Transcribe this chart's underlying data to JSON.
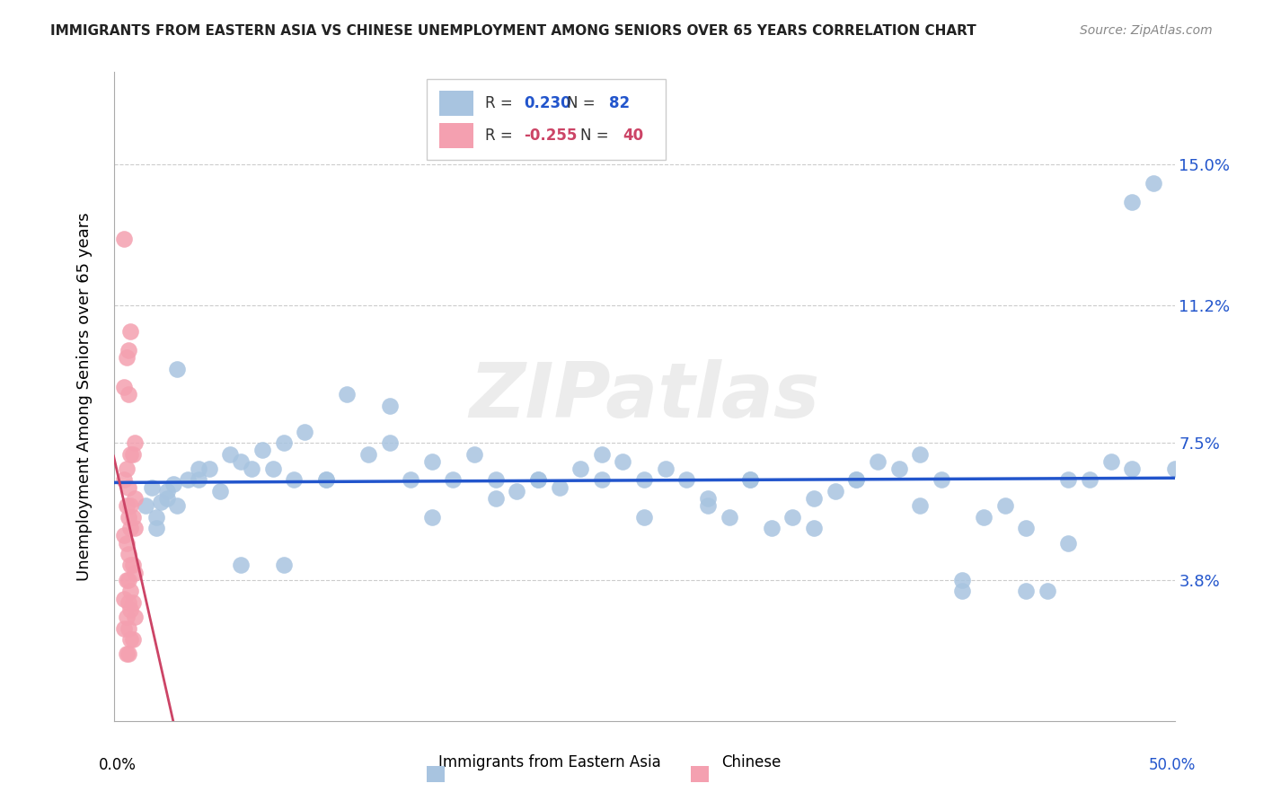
{
  "title": "IMMIGRANTS FROM EASTERN ASIA VS CHINESE UNEMPLOYMENT AMONG SENIORS OVER 65 YEARS CORRELATION CHART",
  "source": "Source: ZipAtlas.com",
  "ylabel": "Unemployment Among Seniors over 65 years",
  "xlim": [
    0.0,
    0.5
  ],
  "ylim": [
    0.0,
    0.175
  ],
  "yticks": [
    0.038,
    0.075,
    0.112,
    0.15
  ],
  "ytick_labels": [
    "3.8%",
    "7.5%",
    "11.2%",
    "15.0%"
  ],
  "xticks": [
    0.0,
    0.1,
    0.2,
    0.3,
    0.4,
    0.5
  ],
  "legend_blue_r": "0.230",
  "legend_blue_n": "82",
  "legend_pink_r": "-0.255",
  "legend_pink_n": "40",
  "blue_color": "#a8c4e0",
  "pink_color": "#f4a0b0",
  "blue_line_color": "#2255cc",
  "pink_line_color": "#cc4466",
  "watermark": "ZIPatlas",
  "blue_scatter_x": [
    0.02,
    0.025,
    0.03,
    0.025,
    0.02,
    0.015,
    0.018,
    0.022,
    0.028,
    0.035,
    0.04,
    0.045,
    0.05,
    0.055,
    0.06,
    0.065,
    0.07,
    0.075,
    0.08,
    0.085,
    0.09,
    0.1,
    0.11,
    0.12,
    0.13,
    0.14,
    0.15,
    0.16,
    0.17,
    0.18,
    0.19,
    0.2,
    0.21,
    0.22,
    0.23,
    0.24,
    0.25,
    0.26,
    0.27,
    0.28,
    0.29,
    0.3,
    0.31,
    0.32,
    0.33,
    0.34,
    0.35,
    0.36,
    0.37,
    0.38,
    0.39,
    0.4,
    0.41,
    0.42,
    0.43,
    0.44,
    0.45,
    0.46,
    0.47,
    0.48,
    0.49,
    0.5,
    0.03,
    0.04,
    0.06,
    0.08,
    0.1,
    0.13,
    0.15,
    0.18,
    0.2,
    0.23,
    0.25,
    0.28,
    0.3,
    0.33,
    0.35,
    0.38,
    0.4,
    0.43,
    0.45,
    0.48
  ],
  "blue_scatter_y": [
    0.055,
    0.06,
    0.058,
    0.062,
    0.052,
    0.058,
    0.063,
    0.059,
    0.064,
    0.065,
    0.065,
    0.068,
    0.062,
    0.072,
    0.07,
    0.068,
    0.073,
    0.068,
    0.075,
    0.065,
    0.078,
    0.065,
    0.088,
    0.072,
    0.085,
    0.065,
    0.07,
    0.065,
    0.072,
    0.065,
    0.062,
    0.065,
    0.063,
    0.068,
    0.065,
    0.07,
    0.065,
    0.068,
    0.065,
    0.06,
    0.055,
    0.065,
    0.052,
    0.055,
    0.052,
    0.062,
    0.065,
    0.07,
    0.068,
    0.072,
    0.065,
    0.035,
    0.055,
    0.058,
    0.052,
    0.035,
    0.048,
    0.065,
    0.07,
    0.14,
    0.145,
    0.068,
    0.095,
    0.068,
    0.042,
    0.042,
    0.065,
    0.075,
    0.055,
    0.06,
    0.065,
    0.072,
    0.055,
    0.058,
    0.065,
    0.06,
    0.065,
    0.058,
    0.038,
    0.035,
    0.065,
    0.068
  ],
  "pink_scatter_x": [
    0.005,
    0.007,
    0.008,
    0.006,
    0.005,
    0.007,
    0.01,
    0.009,
    0.008,
    0.006,
    0.005,
    0.007,
    0.01,
    0.008,
    0.006,
    0.009,
    0.007,
    0.01,
    0.008,
    0.005,
    0.006,
    0.007,
    0.008,
    0.009,
    0.01,
    0.006,
    0.007,
    0.008,
    0.005,
    0.009,
    0.007,
    0.008,
    0.006,
    0.01,
    0.005,
    0.007,
    0.009,
    0.008,
    0.006,
    0.007
  ],
  "pink_scatter_y": [
    0.13,
    0.1,
    0.105,
    0.098,
    0.09,
    0.088,
    0.075,
    0.072,
    0.072,
    0.068,
    0.065,
    0.063,
    0.06,
    0.058,
    0.058,
    0.055,
    0.055,
    0.052,
    0.052,
    0.05,
    0.048,
    0.045,
    0.042,
    0.042,
    0.04,
    0.038,
    0.038,
    0.035,
    0.033,
    0.032,
    0.032,
    0.03,
    0.028,
    0.028,
    0.025,
    0.025,
    0.022,
    0.022,
    0.018,
    0.018
  ]
}
